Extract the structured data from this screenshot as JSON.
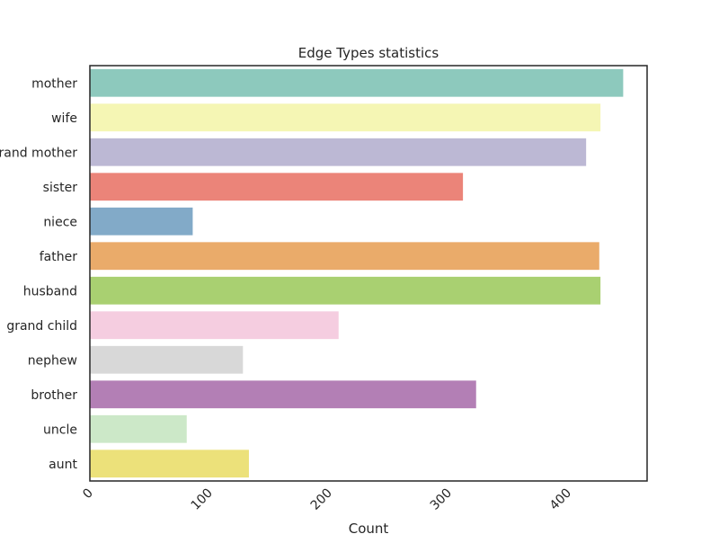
{
  "chart_data": {
    "type": "bar",
    "orientation": "horizontal",
    "title": "Edge Types statistics",
    "xlabel": "Count",
    "ylabel": "",
    "xlim": [
      0,
      466
    ],
    "xticks": [
      0,
      100,
      200,
      300,
      400
    ],
    "grid": false,
    "legend": "none",
    "categories": [
      "mother",
      "wife",
      "grand mother",
      "sister",
      "niece",
      "father",
      "husband",
      "grand child",
      "nephew",
      "brother",
      "uncle",
      "aunt"
    ],
    "values": [
      446,
      427,
      415,
      312,
      86,
      426,
      427,
      208,
      128,
      323,
      81,
      133
    ],
    "colors": [
      "#8dc9bd",
      "#f5f6b4",
      "#bcb8d4",
      "#eb8479",
      "#82aac8",
      "#eaab6a",
      "#a9d071",
      "#f5cde0",
      "#d8d8d8",
      "#b37fb5",
      "#cce8c8",
      "#ece17a"
    ]
  }
}
